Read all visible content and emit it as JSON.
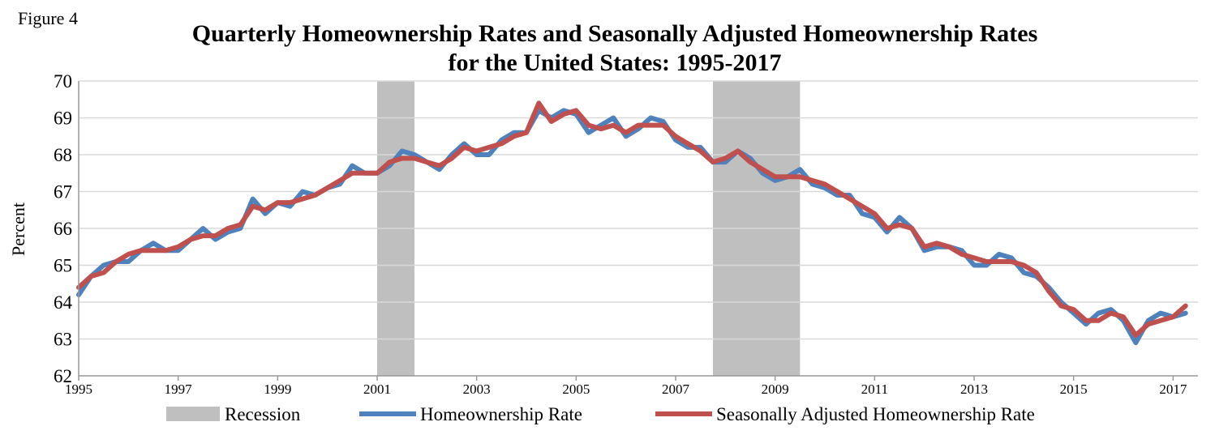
{
  "figure_label": "Figure 4",
  "colors": {
    "recession": "#bfbfbf",
    "homeownership": "#4f81bd",
    "seasonal": "#c0504d",
    "grid": "#d9d9d9"
  },
  "chart_data": {
    "type": "line",
    "title_line1": "Quarterly Homeownership Rates and Seasonally Adjusted Homeownership Rates",
    "title_line2": "for the United States: 1995-2017",
    "ylabel": "Percent",
    "xlabel": "",
    "ylim": [
      62,
      70
    ],
    "yticks": [
      "62",
      "63",
      "64",
      "65",
      "66",
      "67",
      "68",
      "69",
      "70"
    ],
    "xticks": [
      "1995",
      "1997",
      "1999",
      "2001",
      "2003",
      "2005",
      "2007",
      "2009",
      "2011",
      "2013",
      "2015",
      "2017"
    ],
    "xtick_values": [
      1995,
      1997,
      1999,
      2001,
      2003,
      2005,
      2007,
      2009,
      2011,
      2013,
      2015,
      2017
    ],
    "xlim": [
      1995,
      2017.5
    ],
    "grid": true,
    "legend_position": "bottom",
    "recessions": [
      {
        "start": 2001.0,
        "end": 2001.75
      },
      {
        "start": 2007.75,
        "end": 2009.5
      }
    ],
    "legend": [
      "Recession",
      "Homeownership Rate",
      "Seasonally Adjusted Homeownership Rate"
    ],
    "start_year": 1995,
    "series": [
      {
        "name": "Homeownership Rate",
        "values": [
          64.2,
          64.7,
          65.0,
          65.1,
          65.1,
          65.4,
          65.6,
          65.4,
          65.4,
          65.7,
          66.0,
          65.7,
          65.9,
          66.0,
          66.8,
          66.4,
          66.7,
          66.6,
          67.0,
          66.9,
          67.1,
          67.2,
          67.7,
          67.5,
          67.5,
          67.7,
          68.1,
          68.0,
          67.8,
          67.6,
          68.0,
          68.3,
          68.0,
          68.0,
          68.4,
          68.6,
          68.6,
          69.2,
          69.0,
          69.2,
          69.1,
          68.6,
          68.8,
          69.0,
          68.5,
          68.7,
          69.0,
          68.9,
          68.4,
          68.2,
          68.2,
          67.8,
          67.8,
          68.1,
          67.9,
          67.5,
          67.3,
          67.4,
          67.6,
          67.2,
          67.1,
          66.9,
          66.9,
          66.4,
          66.3,
          65.9,
          66.3,
          66.0,
          65.4,
          65.5,
          65.5,
          65.4,
          65.0,
          65.0,
          65.3,
          65.2,
          64.8,
          64.7,
          64.4,
          64.0,
          63.7,
          63.4,
          63.7,
          63.8,
          63.5,
          62.9,
          63.5,
          63.7,
          63.6,
          63.7
        ],
        "color": "#4f81bd"
      },
      {
        "name": "Seasonally Adjusted Homeownership Rate",
        "values": [
          64.4,
          64.7,
          64.8,
          65.1,
          65.3,
          65.4,
          65.4,
          65.4,
          65.5,
          65.7,
          65.8,
          65.8,
          66.0,
          66.1,
          66.6,
          66.5,
          66.7,
          66.7,
          66.8,
          66.9,
          67.1,
          67.3,
          67.5,
          67.5,
          67.5,
          67.8,
          67.9,
          67.9,
          67.8,
          67.7,
          67.9,
          68.2,
          68.1,
          68.2,
          68.3,
          68.5,
          68.6,
          69.4,
          68.9,
          69.1,
          69.2,
          68.8,
          68.7,
          68.8,
          68.6,
          68.8,
          68.8,
          68.8,
          68.5,
          68.3,
          68.1,
          67.8,
          67.9,
          68.1,
          67.8,
          67.6,
          67.4,
          67.4,
          67.4,
          67.3,
          67.2,
          67.0,
          66.8,
          66.6,
          66.4,
          66.0,
          66.1,
          66.0,
          65.5,
          65.6,
          65.5,
          65.3,
          65.2,
          65.1,
          65.1,
          65.1,
          65.0,
          64.8,
          64.3,
          63.9,
          63.8,
          63.5,
          63.5,
          63.7,
          63.6,
          63.1,
          63.4,
          63.5,
          63.6,
          63.9
        ],
        "color": "#c0504d"
      }
    ]
  }
}
